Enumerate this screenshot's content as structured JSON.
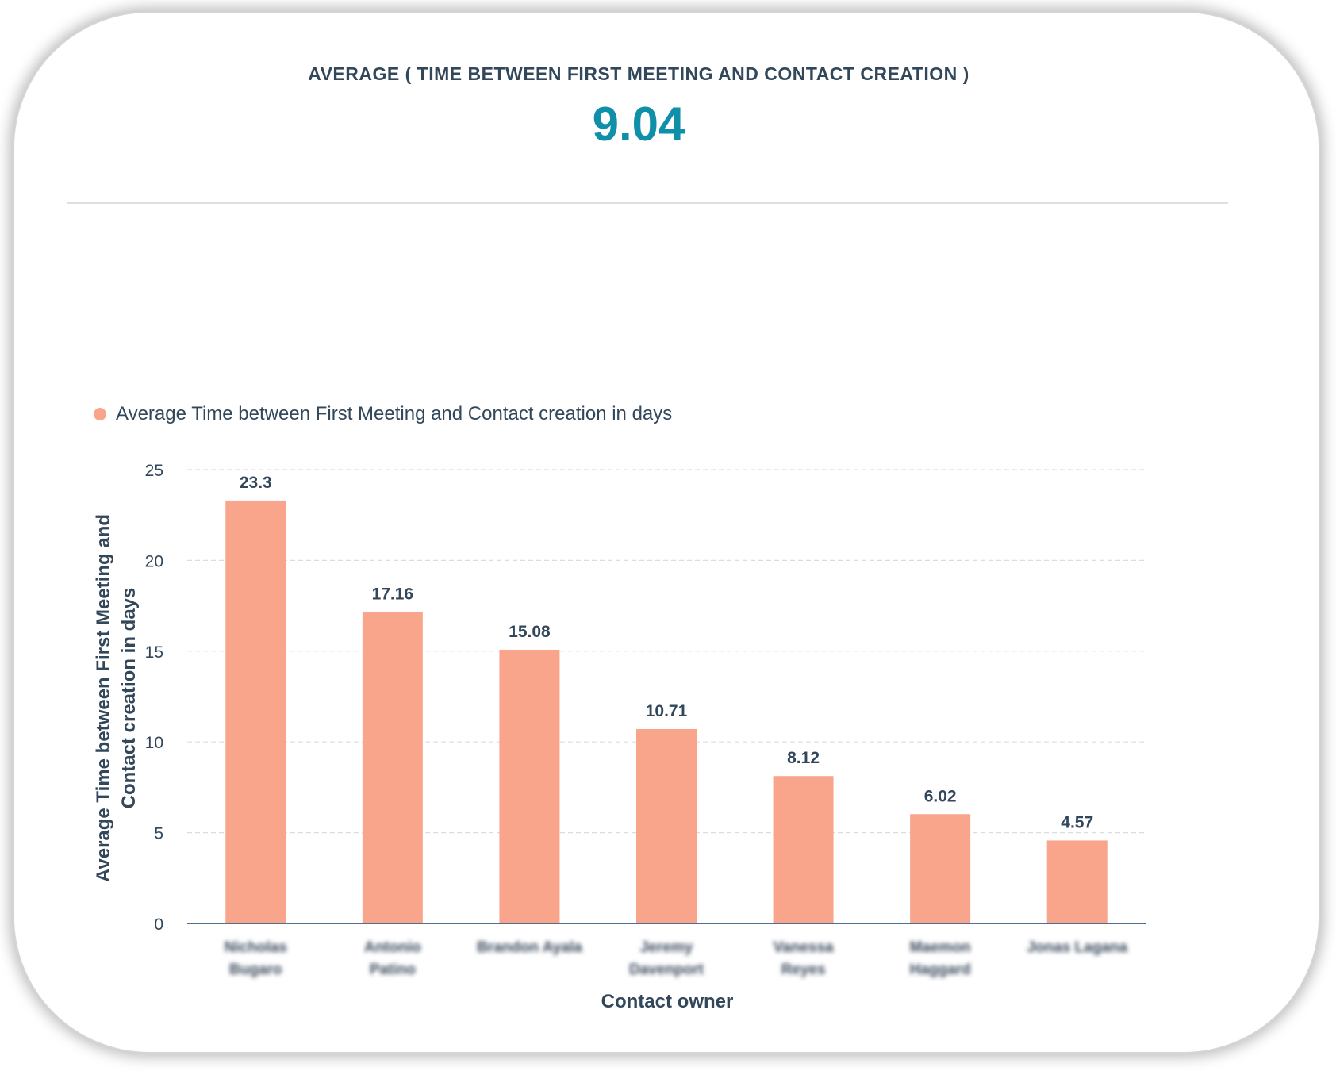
{
  "kpi": {
    "label": "AVERAGE ( TIME BETWEEN FIRST MEETING AND CONTACT CREATION )",
    "value": "9.04"
  },
  "colors": {
    "bar": "#f8a58c",
    "kpi_value": "#0f8fa8",
    "text": "#33475b",
    "grid": "#d9dde2",
    "axis": "#516f90"
  },
  "chart_data": {
    "type": "bar",
    "title": "",
    "legend": [
      "Average Time between First Meeting and Contact creation in days"
    ],
    "legend_position": "top-left",
    "xlabel": "Contact owner",
    "ylabel_lines": [
      "Average Time between First Meeting and",
      "Contact creation in days"
    ],
    "categories": [
      [
        "Nicholas",
        "Bugaro"
      ],
      [
        "Antonio",
        "Patino"
      ],
      [
        "Brandon Ayala"
      ],
      [
        "Jeremy",
        "Davenport"
      ],
      [
        "Vanessa",
        "Reyes"
      ],
      [
        "Maemon",
        "Haggard"
      ],
      [
        "Jonas Lagana"
      ]
    ],
    "values": [
      23.3,
      17.16,
      15.08,
      10.71,
      8.12,
      6.02,
      4.57
    ],
    "value_labels": [
      "23.3",
      "17.16",
      "15.08",
      "10.71",
      "8.12",
      "6.02",
      "4.57"
    ],
    "yticks": [
      0,
      5,
      10,
      15,
      20,
      25
    ],
    "ylim": [
      0,
      25
    ],
    "grid": true
  }
}
